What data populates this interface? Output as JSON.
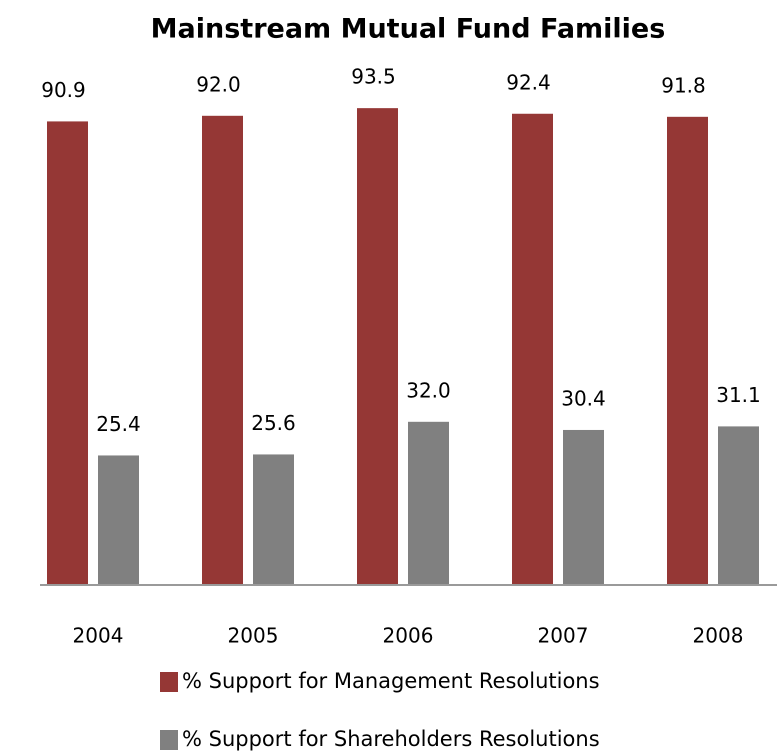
{
  "chart_data": {
    "type": "bar",
    "title": "Mainstream Mutual Fund Families",
    "categories": [
      "2004",
      "2005",
      "2006",
      "2007",
      "2008"
    ],
    "series": [
      {
        "name": "% Support for Management Resolutions",
        "color": "#953735",
        "values": [
          90.9,
          92.0,
          93.5,
          92.4,
          91.8
        ],
        "value_labels": [
          "90.9",
          "92.0",
          "93.5",
          "92.4",
          "91.8"
        ]
      },
      {
        "name": "% Support for Shareholders Resolutions",
        "color": "#808080",
        "values": [
          25.4,
          25.6,
          32.0,
          30.4,
          31.1
        ],
        "value_labels": [
          "25.4",
          "25.6",
          "32.0",
          "30.4",
          "31.1"
        ]
      }
    ],
    "ylim": [
      0,
      100
    ]
  }
}
